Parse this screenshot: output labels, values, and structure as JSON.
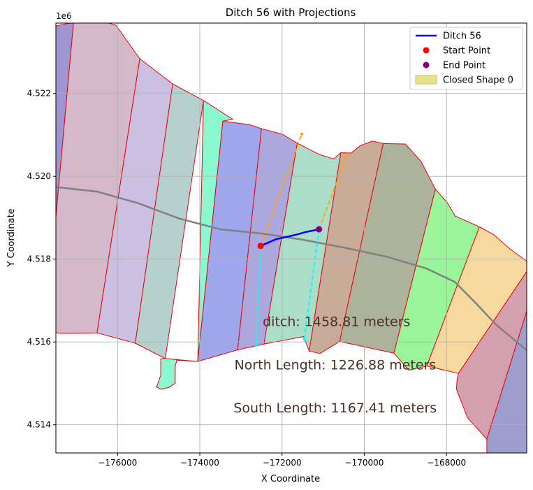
{
  "chart_data": {
    "type": "map",
    "title": "Ditch 56 with Projections",
    "xlabel": "X Coordinate",
    "ylabel": "Y Coordinate",
    "y_offset_label": "1e6",
    "xlim": [
      -177500,
      -166050
    ],
    "ylim": [
      4513320,
      4523700
    ],
    "x_ticks": [
      -176000,
      -174000,
      -172000,
      -170000,
      -168000
    ],
    "x_tick_labels": [
      "−176000",
      "−174000",
      "−172000",
      "−170000",
      "−168000"
    ],
    "y_ticks": [
      4514000,
      4516000,
      4518000,
      4520000,
      4522000
    ],
    "y_tick_labels": [
      "4.514",
      "4.516",
      "4.518",
      "4.520",
      "4.522"
    ],
    "grid": true,
    "legend_position": "top-right",
    "legend": [
      {
        "label": "Ditch 56",
        "kind": "line",
        "color": "#0000ff"
      },
      {
        "label": "Start Point",
        "kind": "dot",
        "color": "#ff0000"
      },
      {
        "label": "End Point",
        "kind": "dot",
        "color": "#800080"
      },
      {
        "label": "Closed Shape 0",
        "kind": "patch",
        "color": "#e5e28a"
      }
    ],
    "ditch": {
      "name": "Ditch 56",
      "color": "#0000ff",
      "points": [
        [
          -172520,
          4518320
        ],
        [
          -172150,
          4518480
        ],
        [
          -171700,
          4518580
        ],
        [
          -171400,
          4518660
        ],
        [
          -171100,
          4518720
        ]
      ]
    },
    "start_point": {
      "x": -172520,
      "y": 4518320,
      "color": "#ff0000"
    },
    "end_point": {
      "x": -171100,
      "y": 4518720,
      "color": "#800080"
    },
    "north_projections": [
      {
        "color": "#ffa500",
        "points": [
          [
            -172520,
            4518320
          ],
          [
            -171520,
            4521020
          ]
        ]
      },
      {
        "color": "#ffa500",
        "points": [
          [
            -171100,
            4518720
          ],
          [
            -170420,
            4520520
          ]
        ]
      }
    ],
    "south_projections": [
      {
        "color": "#00ffff",
        "points": [
          [
            -172520,
            4518320
          ],
          [
            -172630,
            4515930
          ]
        ]
      },
      {
        "color": "#00ffff",
        "points": [
          [
            -171100,
            4518720
          ],
          [
            -171460,
            4516070
          ]
        ]
      }
    ],
    "centerline": {
      "color": "#808080",
      "points": [
        [
          -177500,
          4519740
        ],
        [
          -176500,
          4519630
        ],
        [
          -175500,
          4519350
        ],
        [
          -174500,
          4518980
        ],
        [
          -173500,
          4518720
        ],
        [
          -172500,
          4518620
        ],
        [
          -171500,
          4518470
        ],
        [
          -170500,
          4518280
        ],
        [
          -169500,
          4518070
        ],
        [
          -168500,
          4517780
        ],
        [
          -167800,
          4517450
        ],
        [
          -167300,
          4516950
        ],
        [
          -166800,
          4516420
        ],
        [
          -166050,
          4515800
        ]
      ]
    },
    "strips": [
      {
        "color": "#9a8fcd",
        "points": [
          [
            -177500,
            4523630
          ],
          [
            -177070,
            4523720
          ],
          [
            -177500,
            4519020
          ]
        ]
      },
      {
        "color": "#d3b5c7",
        "points": [
          [
            -177070,
            4523720
          ],
          [
            -176400,
            4523750
          ],
          [
            -176040,
            4523650
          ],
          [
            -175460,
            4522840
          ],
          [
            -176500,
            4516220
          ],
          [
            -177420,
            4516210
          ],
          [
            -177500,
            4516230
          ],
          [
            -177500,
            4519020
          ]
        ]
      },
      {
        "color": "#c8bde0",
        "points": [
          [
            -175460,
            4522840
          ],
          [
            -174660,
            4522230
          ],
          [
            -175570,
            4515970
          ],
          [
            -176500,
            4516220
          ]
        ]
      },
      {
        "color": "#b1cdcb",
        "points": [
          [
            -174660,
            4522230
          ],
          [
            -173910,
            4521830
          ],
          [
            -174840,
            4515600
          ],
          [
            -175570,
            4515970
          ]
        ]
      },
      {
        "color": "#84f9ce",
        "points": [
          [
            -173910,
            4521830
          ],
          [
            -173200,
            4521380
          ],
          [
            -173440,
            4521330
          ],
          [
            -174050,
            4515530
          ],
          [
            -174840,
            4515600
          ],
          [
            -174950,
            4515590
          ],
          [
            -174950,
            4515200
          ],
          [
            -175030,
            4514960
          ],
          [
            -175060,
            4514920
          ],
          [
            -174950,
            4514860
          ],
          [
            -174760,
            4514900
          ],
          [
            -174600,
            4515000
          ],
          [
            -174600,
            4515400
          ],
          [
            -174560,
            4515560
          ],
          [
            -174050,
            4515530
          ]
        ]
      },
      {
        "color": "#9aa1ea",
        "points": [
          [
            -173440,
            4521330
          ],
          [
            -172790,
            4521250
          ],
          [
            -172500,
            4521150
          ],
          [
            -173080,
            4515810
          ],
          [
            -174050,
            4515530
          ]
        ]
      },
      {
        "color": "#a8a3dc",
        "points": [
          [
            -172500,
            4521150
          ],
          [
            -172000,
            4521020
          ],
          [
            -171630,
            4520800
          ],
          [
            -172440,
            4515950
          ],
          [
            -173080,
            4515810
          ]
        ]
      },
      {
        "color": "#a8dbc6",
        "points": [
          [
            -171630,
            4520800
          ],
          [
            -171080,
            4520520
          ],
          [
            -170740,
            4520420
          ],
          [
            -170570,
            4520570
          ],
          [
            -171340,
            4515780
          ],
          [
            -171480,
            4516130
          ],
          [
            -172440,
            4515950
          ]
        ]
      },
      {
        "color": "#c5a693",
        "points": [
          [
            -170570,
            4520570
          ],
          [
            -170320,
            4520560
          ],
          [
            -170100,
            4520740
          ],
          [
            -169800,
            4520850
          ],
          [
            -169540,
            4520790
          ],
          [
            -170600,
            4516010
          ],
          [
            -171080,
            4515720
          ],
          [
            -171340,
            4515780
          ]
        ]
      },
      {
        "color": "#a9ae95",
        "points": [
          [
            -169540,
            4520790
          ],
          [
            -169000,
            4520780
          ],
          [
            -168620,
            4520360
          ],
          [
            -168270,
            4519690
          ],
          [
            -169280,
            4515730
          ],
          [
            -170600,
            4516010
          ]
        ]
      },
      {
        "color": "#95f495",
        "points": [
          [
            -168270,
            4519690
          ],
          [
            -167980,
            4519360
          ],
          [
            -167790,
            4519040
          ],
          [
            -167200,
            4518780
          ],
          [
            -168480,
            4515420
          ],
          [
            -168920,
            4515320
          ],
          [
            -169280,
            4515730
          ]
        ]
      },
      {
        "color": "#f5d79a",
        "points": [
          [
            -167200,
            4518780
          ],
          [
            -166850,
            4518590
          ],
          [
            -166450,
            4518240
          ],
          [
            -166050,
            4517950
          ],
          [
            -166050,
            4517700
          ],
          [
            -167710,
            4515240
          ],
          [
            -168480,
            4515420
          ]
        ]
      },
      {
        "color": "#d29aaa",
        "points": [
          [
            -166050,
            4517700
          ],
          [
            -166050,
            4516740
          ],
          [
            -167020,
            4513650
          ],
          [
            -167490,
            4514170
          ],
          [
            -167710,
            4514730
          ],
          [
            -167760,
            4514860
          ],
          [
            -167740,
            4515110
          ],
          [
            -167710,
            4515240
          ]
        ]
      },
      {
        "color": "#9999cb",
        "points": [
          [
            -166050,
            4516740
          ],
          [
            -166050,
            4513320
          ],
          [
            -167020,
            4513320
          ],
          [
            -167020,
            4513650
          ]
        ]
      }
    ],
    "annotations": [
      {
        "text": "ditch: 1458.81 meters",
        "x": -172470,
        "y": 4516380
      },
      {
        "text": "North Length: 1226.88 meters",
        "x": -173160,
        "y": 4515340
      },
      {
        "text": "South Length: 1167.41 meters",
        "x": -173180,
        "y": 4514300
      }
    ]
  }
}
